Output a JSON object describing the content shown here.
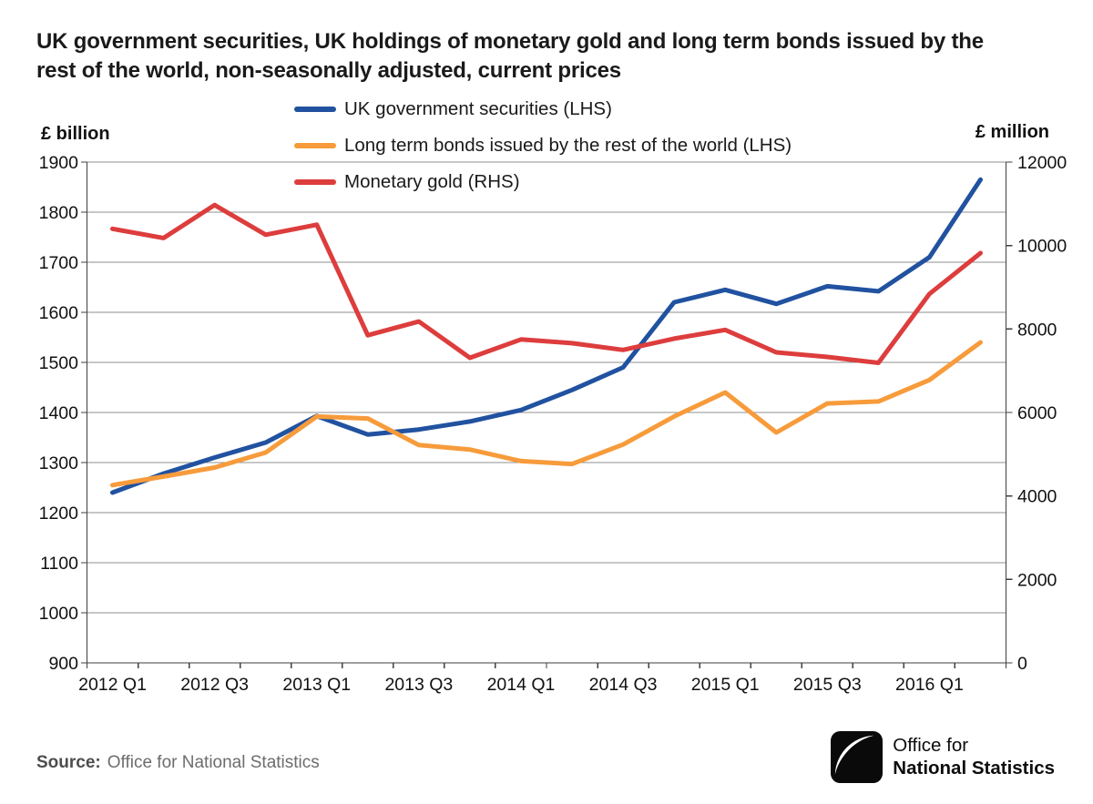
{
  "title": {
    "line1": "UK government securities, UK holdings of monetary gold and long term bonds issued by the",
    "line2": "rest of the world, non-seasonally adjusted, current prices"
  },
  "source": {
    "label": "Source:",
    "text": "Office for National Statistics"
  },
  "logo": {
    "line1": "Office for",
    "line2": "National Statistics"
  },
  "chart_data": {
    "type": "line",
    "categories": [
      "2012 Q1",
      "2012 Q2",
      "2012 Q3",
      "2012 Q4",
      "2013 Q1",
      "2013 Q2",
      "2013 Q3",
      "2013 Q4",
      "2014 Q1",
      "2014 Q2",
      "2014 Q3",
      "2014 Q4",
      "2015 Q1",
      "2015 Q2",
      "2015 Q3",
      "2015 Q4",
      "2016 Q1",
      "2016 Q2"
    ],
    "x_tick_labels": [
      "2012 Q1",
      "2012 Q3",
      "2013 Q1",
      "2013 Q3",
      "2014 Q1",
      "2014 Q3",
      "2015 Q1",
      "2015 Q3",
      "2016 Q1"
    ],
    "left_axis": {
      "label": "£ billion",
      "min": 900,
      "max": 1900,
      "step": 100
    },
    "right_axis": {
      "label": "£ million",
      "min": 0,
      "max": 12000,
      "step": 2000
    },
    "grid": true,
    "legend_position": "top",
    "colors": {
      "grid": "#8f8f8f",
      "axis": "#3f3f3f",
      "tick_text": "#111111"
    },
    "series": [
      {
        "id": "uk-government-securities",
        "name": "UK government securities (LHS)",
        "axis": "left",
        "color": "#2152a0",
        "values": [
          1240,
          1278,
          1310,
          1340,
          1393,
          1356,
          1366,
          1382,
          1405,
          1445,
          1490,
          1620,
          1645,
          1617,
          1652,
          1642,
          1710,
          1865
        ]
      },
      {
        "id": "long-term-bonds-rest-of-world",
        "name": "Long term bonds issued by the rest of the world (LHS)",
        "axis": "left",
        "color": "#f79b3b",
        "values": [
          1255,
          1272,
          1290,
          1320,
          1392,
          1388,
          1335,
          1326,
          1303,
          1297,
          1336,
          1392,
          1440,
          1360,
          1418,
          1422,
          1465,
          1540
        ]
      },
      {
        "id": "monetary-gold",
        "name": "Monetary gold (RHS)",
        "axis": "right",
        "color": "#dd3d3d",
        "values": [
          10400,
          10180,
          10970,
          10260,
          10500,
          7850,
          8180,
          7310,
          7750,
          7660,
          7500,
          7770,
          7980,
          7440,
          7330,
          7190,
          8840,
          9820
        ]
      }
    ]
  }
}
